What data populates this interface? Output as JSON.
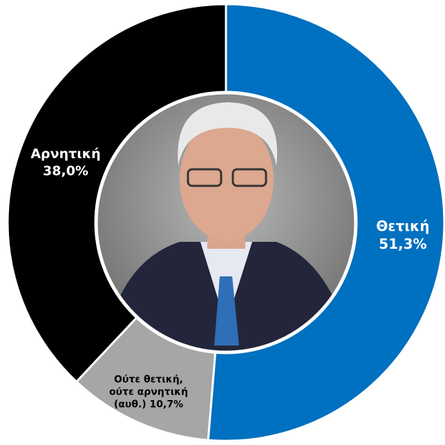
{
  "chart_data": {
    "type": "donut",
    "categories": [
      "Θετική",
      "Ούτε θετική, ούτε αρνητική (αυθ.)",
      "Αρνητική"
    ],
    "values": [
      51.3,
      10.7,
      38.0
    ],
    "value_labels": [
      "51,3%",
      "10,7%",
      "38,0%"
    ],
    "colors": [
      "#0070c0",
      "#a6a6a6",
      "#000000"
    ]
  }
}
